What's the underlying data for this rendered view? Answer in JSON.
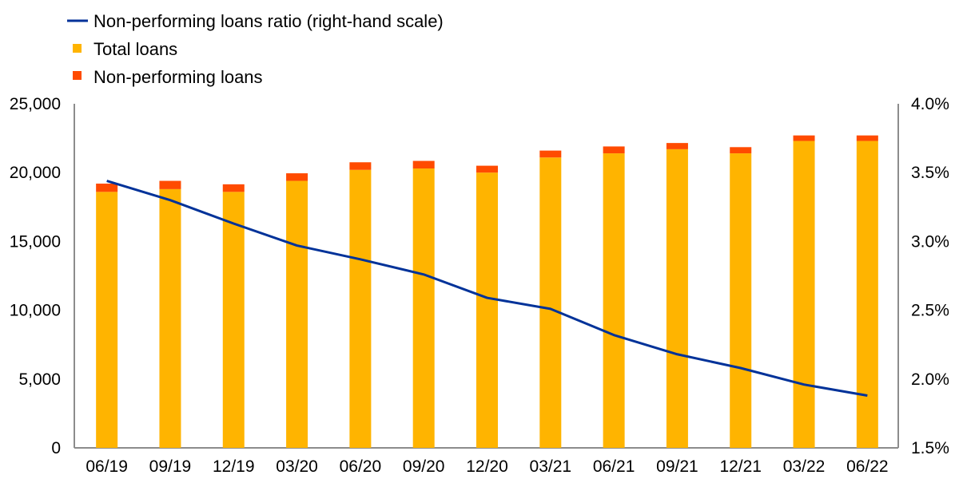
{
  "chart_data": {
    "type": "bar",
    "subtype": "stacked-bar-with-line",
    "categories": [
      "06/19",
      "09/19",
      "12/19",
      "03/20",
      "06/20",
      "09/20",
      "12/20",
      "03/21",
      "06/21",
      "09/21",
      "12/21",
      "03/22",
      "06/22"
    ],
    "series": [
      {
        "name": "Total loans",
        "kind": "bar",
        "axis": "left",
        "color": "#FFB400",
        "values": [
          18600,
          18800,
          18600,
          19400,
          20200,
          20300,
          20000,
          21100,
          21400,
          21700,
          21400,
          22300,
          22300
        ]
      },
      {
        "name": "Non-performing loans",
        "kind": "bar-stacked",
        "axis": "left",
        "color": "#FF4B00",
        "values": [
          600,
          600,
          550,
          550,
          550,
          550,
          500,
          500,
          500,
          450,
          450,
          400,
          400
        ]
      },
      {
        "name": "Non-performing loans ratio (right-hand scale)",
        "kind": "line",
        "axis": "right",
        "color": "#003299",
        "values": [
          3.44,
          3.3,
          3.13,
          2.97,
          2.87,
          2.76,
          2.59,
          2.51,
          2.32,
          2.18,
          2.08,
          1.96,
          1.88
        ]
      }
    ],
    "y_left": {
      "min": 0,
      "max": 25000,
      "ticks": [
        "0",
        "5,000",
        "10,000",
        "15,000",
        "20,000",
        "25,000"
      ]
    },
    "y_right": {
      "min": 1.5,
      "max": 4.0,
      "ticks": [
        "1.5%",
        "2.0%",
        "2.5%",
        "3.0%",
        "3.5%",
        "4.0%"
      ]
    },
    "legend": {
      "position": "top-left",
      "items": [
        {
          "label": "Non-performing loans ratio (right-hand scale)",
          "symbol": "line",
          "color": "#003299"
        },
        {
          "label": "Total loans",
          "symbol": "square",
          "color": "#FFB400"
        },
        {
          "label": "Non-performing loans",
          "symbol": "square",
          "color": "#FF4B00"
        }
      ]
    },
    "grid": false
  }
}
